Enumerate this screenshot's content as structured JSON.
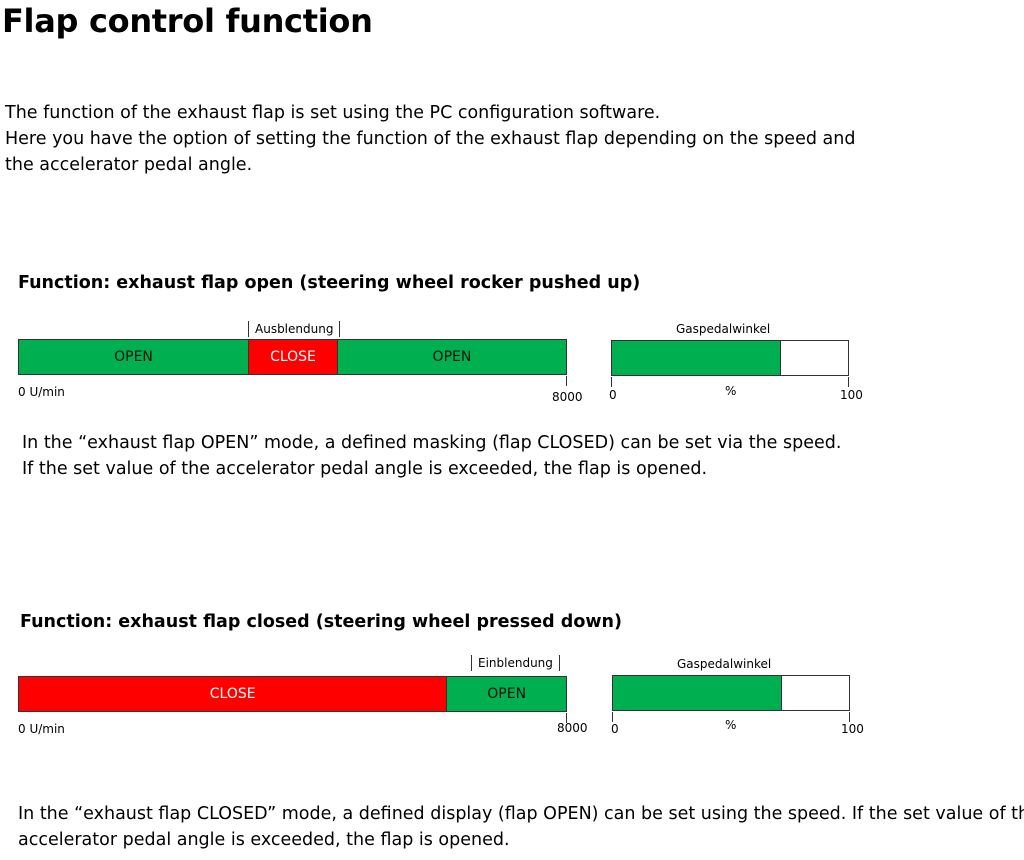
{
  "page": {
    "title": "Flap control function",
    "intro": [
      "The function of the exhaust flap is set using the PC configuration software.",
      "Here you have the option of setting the function of the exhaust flap depending on the speed and",
      "the accelerator pedal angle."
    ]
  },
  "sections": [
    {
      "heading": "Function: exhaust flap open (steering wheel rocker pushed up)",
      "marker_label": "Ausblendung",
      "speed_bar": {
        "min_label": "0 U/min",
        "max_label": "8000",
        "rpm_max": 8000,
        "segments": [
          {
            "label": "OPEN",
            "state": "open",
            "end_rpm": 3350
          },
          {
            "label": "CLOSE",
            "state": "close",
            "end_rpm": 4650
          },
          {
            "label": "OPEN",
            "state": "open",
            "end_rpm": 8000
          }
        ]
      },
      "pedal_gauge": {
        "title": "Gaspedalwinkel",
        "min_label": "0",
        "unit_label": "%",
        "max_label": "100",
        "threshold_percent": 71
      },
      "description": [
        "In the “exhaust flap OPEN” mode, a defined masking (flap CLOSED) can be set via the speed.",
        "If the set value of the accelerator pedal angle is exceeded, the flap is opened."
      ]
    },
    {
      "heading": "Function: exhaust flap closed (steering wheel pressed down)",
      "marker_label": "Einblendung",
      "speed_bar": {
        "min_label": "0 U/min",
        "max_label": "8000",
        "rpm_max": 8000,
        "segments": [
          {
            "label": "CLOSE",
            "state": "close",
            "end_rpm": 6250
          },
          {
            "label": "OPEN",
            "state": "open",
            "end_rpm": 8000
          }
        ]
      },
      "pedal_gauge": {
        "title": "Gaspedalwinkel",
        "min_label": "0",
        "unit_label": "%",
        "max_label": "100",
        "threshold_percent": 71
      },
      "description": [
        "In the “exhaust flap CLOSED” mode, a defined display (flap OPEN) can be set using the speed. If the set value of the",
        "accelerator pedal angle is exceeded, the flap is opened."
      ]
    }
  ],
  "colors": {
    "open": "#00b050",
    "close": "#ff0000",
    "blank": "#ffffff",
    "border": "#333333"
  }
}
